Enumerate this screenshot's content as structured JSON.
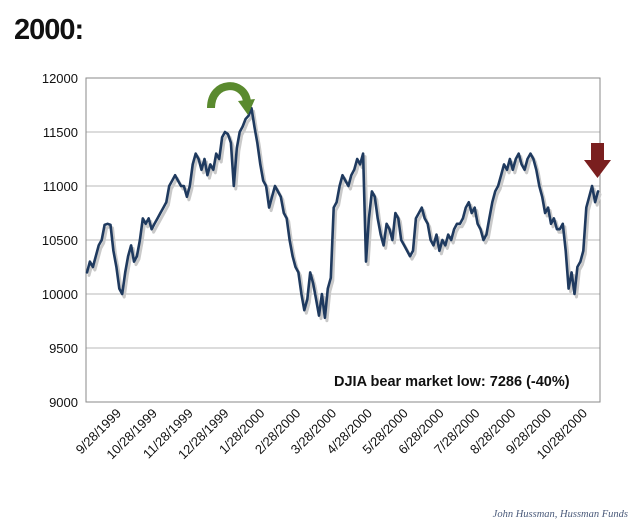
{
  "page": {
    "title": "2000:",
    "credit": "John Hussman, Hussman Funds"
  },
  "colors": {
    "line": "#1f3a5f",
    "grid": "#b8b8b8",
    "up_arrow": "#5a8a2e",
    "down_arrow": "#7a1f1f"
  },
  "icons": {
    "peak_marker": "curved-arrow-icon",
    "current_marker": "down-arrow-icon"
  },
  "chart_data": {
    "type": "line",
    "title": "",
    "xlabel": "",
    "ylabel": "",
    "ylim": [
      9000,
      12000
    ],
    "yticks": [
      9000,
      9500,
      10000,
      10500,
      11000,
      11500,
      12000
    ],
    "xticks": [
      "9/28/1999",
      "10/28/1999",
      "11/28/1999",
      "12/28/1999",
      "1/28/2000",
      "2/28/2000",
      "3/28/2000",
      "4/28/2000",
      "5/28/2000",
      "6/28/2000",
      "7/28/2000",
      "8/28/2000",
      "9/28/2000",
      "10/28/2000"
    ],
    "grid": true,
    "annotation": "DJIA bear market low: 7286 (-40%)",
    "series": [
      {
        "name": "DJIA",
        "values": [
          10200,
          10300,
          10250,
          10350,
          10450,
          10500,
          10640,
          10650,
          10640,
          10400,
          10250,
          10050,
          10000,
          10200,
          10350,
          10450,
          10300,
          10350,
          10500,
          10700,
          10650,
          10700,
          10600,
          10650,
          10700,
          10750,
          10800,
          10850,
          11000,
          11050,
          11100,
          11050,
          11000,
          11000,
          10900,
          11000,
          11200,
          11300,
          11250,
          11150,
          11250,
          11100,
          11200,
          11150,
          11300,
          11250,
          11450,
          11500,
          11480,
          11400,
          11000,
          11350,
          11500,
          11550,
          11620,
          11650,
          11720,
          11550,
          11400,
          11200,
          11050,
          11000,
          10800,
          10900,
          11000,
          10950,
          10900,
          10750,
          10700,
          10500,
          10350,
          10250,
          10200,
          10000,
          9850,
          9950,
          10200,
          10100,
          9950,
          9800,
          10000,
          9780,
          10050,
          10150,
          10800,
          10850,
          11000,
          11100,
          11050,
          11000,
          11100,
          11150,
          11250,
          11200,
          11300,
          10300,
          10700,
          10950,
          10900,
          10700,
          10550,
          10450,
          10650,
          10600,
          10500,
          10750,
          10700,
          10500,
          10450,
          10400,
          10350,
          10400,
          10700,
          10750,
          10800,
          10700,
          10650,
          10500,
          10450,
          10550,
          10400,
          10500,
          10450,
          10550,
          10500,
          10600,
          10650,
          10650,
          10700,
          10800,
          10850,
          10750,
          10800,
          10650,
          10600,
          10500,
          10550,
          10700,
          10850,
          10950,
          11000,
          11100,
          11200,
          11150,
          11250,
          11150,
          11250,
          11300,
          11200,
          11150,
          11250,
          11300,
          11250,
          11150,
          11000,
          10900,
          10750,
          10800,
          10650,
          10700,
          10600,
          10600,
          10650,
          10400,
          10050,
          10200,
          10000,
          10250,
          10300,
          10400,
          10800,
          10900,
          11000,
          10850,
          10950
        ]
      }
    ]
  }
}
